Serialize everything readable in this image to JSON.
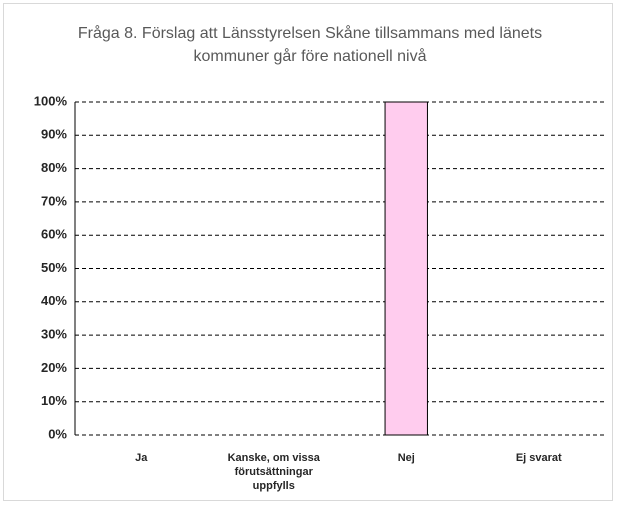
{
  "chart_data": {
    "type": "bar",
    "title": "Fråga 8. Förslag att Länsstyrelsen Skåne tillsammans med länets kommuner går före nationell nivå",
    "categories": [
      "Ja",
      "Kanske, om vissa förutsättningar uppfylls",
      "Nej",
      "Ej svarat"
    ],
    "values": [
      0,
      0,
      100,
      0
    ],
    "color": "#ffccee",
    "ylim": [
      0,
      100
    ],
    "yticks": [
      {
        "value": 0,
        "label": "0%"
      },
      {
        "value": 10,
        "label": "10%"
      },
      {
        "value": 20,
        "label": "20%"
      },
      {
        "value": 30,
        "label": "30%"
      },
      {
        "value": 40,
        "label": "40%"
      },
      {
        "value": 50,
        "label": "50%"
      },
      {
        "value": 60,
        "label": "60%"
      },
      {
        "value": 70,
        "label": "70%"
      },
      {
        "value": 80,
        "label": "80%"
      },
      {
        "value": 90,
        "label": "90%"
      },
      {
        "value": 100,
        "label": "100%"
      }
    ],
    "grid": true
  }
}
